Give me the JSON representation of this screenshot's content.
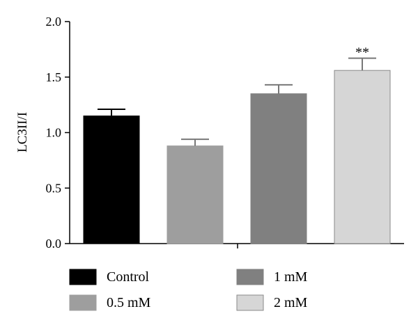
{
  "chart_data": {
    "type": "bar",
    "ylabel": "LC3II/I",
    "ylim": [
      0,
      2.0
    ],
    "yticks": [
      "0.0",
      "0.5",
      "1.0",
      "1.5",
      "2.0"
    ],
    "categories": [
      "Control",
      "0.5 mM",
      "1 mM",
      "2 mM"
    ],
    "values": [
      1.15,
      0.88,
      1.35,
      1.56
    ],
    "errors": [
      0.06,
      0.06,
      0.08,
      0.11
    ],
    "annotations": [
      "",
      "",
      "",
      "**"
    ],
    "colors": [
      "#000000",
      "#9e9e9e",
      "#808080",
      "#d6d6d6"
    ],
    "legend": {
      "placement": "bottom",
      "entries": [
        "Control",
        "1 mM",
        "0.5 mM",
        "2 mM"
      ],
      "entry_colors": [
        "#000000",
        "#808080",
        "#9e9e9e",
        "#d6d6d6"
      ]
    },
    "grid": false
  }
}
